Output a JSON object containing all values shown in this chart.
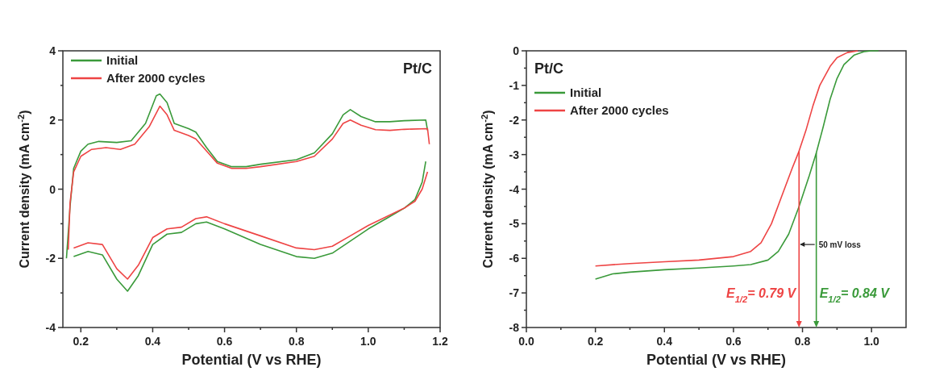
{
  "chart_data": [
    {
      "type": "line",
      "xlabel": "Potential (V vs RHE)",
      "ylabel": "Current density (mA cm$^{-2}$)",
      "legend": "top left",
      "annotations": [
        "Pt/C"
      ],
      "xlim": [
        0.15,
        1.2
      ],
      "xticks": [
        0.2,
        {
          "value": 0.3,
          "label": null
        },
        0.4,
        {
          "value": 0.5,
          "label": null
        },
        0.6,
        {
          "value": 0.7,
          "label": null
        },
        0.8,
        {
          "value": 0.9,
          "label": null
        },
        {
          "value": 1,
          "label": "1.0"
        },
        {
          "value": 1.1,
          "label": null
        },
        1.2
      ],
      "ylim": [
        -4,
        4
      ],
      "yticks": [
        -4,
        {
          "value": -3,
          "label": null
        },
        -2,
        {
          "value": -1,
          "label": null
        },
        0,
        {
          "value": 1,
          "label": null
        },
        2,
        {
          "value": 3,
          "label": null
        },
        4
      ],
      "series": [
        {
          "name": "Initial",
          "color": "#3a9a3a",
          "x": [
            0.16,
            0.17,
            0.18,
            0.2,
            0.22,
            0.25,
            0.3,
            0.34,
            0.38,
            0.41,
            0.42,
            0.44,
            0.46,
            0.5,
            0.52,
            0.55,
            0.58,
            0.62,
            0.66,
            0.7,
            0.8,
            0.85,
            0.9,
            0.93,
            0.95,
            0.98,
            1.02,
            1.06,
            1.1,
            1.16,
            1.165
          ],
          "values": [
            -2.0,
            -0.5,
            0.6,
            1.1,
            1.3,
            1.38,
            1.35,
            1.4,
            1.9,
            2.7,
            2.75,
            2.5,
            1.9,
            1.75,
            1.65,
            1.2,
            0.8,
            0.65,
            0.65,
            0.72,
            0.85,
            1.05,
            1.6,
            2.15,
            2.3,
            2.1,
            1.95,
            1.95,
            1.98,
            2.0,
            1.7
          ]
        },
        {
          "color": "#3a9a3a",
          "x": [
            0.18,
            0.22,
            0.26,
            0.3,
            0.33,
            0.36,
            0.4,
            0.44,
            0.48,
            0.52,
            0.55,
            0.6,
            0.7,
            0.8,
            0.85,
            0.9,
            0.95,
            1.0,
            1.05,
            1.1,
            1.13,
            1.15,
            1.16
          ],
          "values": [
            -1.95,
            -1.8,
            -1.9,
            -2.6,
            -2.95,
            -2.5,
            -1.6,
            -1.3,
            -1.25,
            -1.0,
            -0.95,
            -1.15,
            -1.6,
            -1.95,
            -2.0,
            -1.85,
            -1.5,
            -1.15,
            -0.85,
            -0.55,
            -0.3,
            0.2,
            0.8
          ]
        },
        {
          "name": "After 2000 cycles",
          "color": "#ee4444",
          "x": [
            0.165,
            0.17,
            0.18,
            0.2,
            0.23,
            0.27,
            0.31,
            0.35,
            0.39,
            0.42,
            0.44,
            0.46,
            0.5,
            0.52,
            0.55,
            0.58,
            0.62,
            0.66,
            0.7,
            0.8,
            0.85,
            0.9,
            0.93,
            0.95,
            0.98,
            1.02,
            1.06,
            1.1,
            1.165,
            1.17
          ],
          "values": [
            -1.75,
            -0.4,
            0.5,
            0.95,
            1.15,
            1.2,
            1.15,
            1.3,
            1.8,
            2.4,
            2.15,
            1.7,
            1.55,
            1.45,
            1.1,
            0.75,
            0.6,
            0.6,
            0.65,
            0.8,
            0.95,
            1.45,
            1.9,
            2.0,
            1.85,
            1.72,
            1.7,
            1.73,
            1.75,
            1.3
          ]
        },
        {
          "color": "#ee4444",
          "x": [
            0.18,
            0.22,
            0.26,
            0.3,
            0.33,
            0.36,
            0.4,
            0.44,
            0.48,
            0.52,
            0.55,
            0.6,
            0.7,
            0.8,
            0.85,
            0.9,
            0.95,
            1.0,
            1.05,
            1.1,
            1.13,
            1.15,
            1.165
          ],
          "values": [
            -1.7,
            -1.55,
            -1.6,
            -2.3,
            -2.6,
            -2.2,
            -1.4,
            -1.15,
            -1.1,
            -0.85,
            -0.8,
            -1.0,
            -1.35,
            -1.7,
            -1.75,
            -1.65,
            -1.35,
            -1.05,
            -0.8,
            -0.55,
            -0.35,
            0.0,
            0.5
          ]
        }
      ]
    },
    {
      "type": "line",
      "xlabel": "Potential (V vs RHE)",
      "ylabel": "Current density (mA cm$^{-2}$)",
      "legend": "top left",
      "annotations": [
        "Pt/C",
        "50 mV loss"
      ],
      "xlim": [
        0,
        1.1
      ],
      "xticks": [
        {
          "value": 0,
          "label": "0.0"
        },
        {
          "value": 0.1,
          "label": null
        },
        0.2,
        {
          "value": 0.3,
          "label": null
        },
        0.4,
        {
          "value": 0.5,
          "label": null
        },
        0.6,
        {
          "value": 0.7,
          "label": null
        },
        0.8,
        {
          "value": 0.9,
          "label": null
        },
        {
          "value": 1,
          "label": "1.0"
        }
      ],
      "ylim": [
        -8,
        0
      ],
      "yticks": [
        -8,
        {
          "value": -7.5,
          "label": null
        },
        -7,
        {
          "value": -6.5,
          "label": null
        },
        -6,
        {
          "value": -5.5,
          "label": null
        },
        -5,
        {
          "value": -4.5,
          "label": null
        },
        -4,
        {
          "value": -3.5,
          "label": null
        },
        -3,
        {
          "value": -2.5,
          "label": null
        },
        -2,
        {
          "value": -1.5,
          "label": null
        },
        -1,
        {
          "value": -0.5,
          "label": null
        },
        0
      ],
      "ref_lines": [
        {
          "axis": "x",
          "value": 0.79,
          "label": "E$_{1/2}$= 0.79 V",
          "color": "#ee4444"
        },
        {
          "axis": "x",
          "value": 0.84,
          "label": "E$_{1/2}$= 0.84 V",
          "color": "#3a9a3a"
        }
      ],
      "series": [
        {
          "name": "Initial",
          "color": "#3a9a3a",
          "x": [
            0.2,
            0.25,
            0.3,
            0.4,
            0.5,
            0.6,
            0.65,
            0.7,
            0.73,
            0.76,
            0.79,
            0.82,
            0.84,
            0.86,
            0.88,
            0.9,
            0.92,
            0.95,
            0.98,
            1.0,
            1.02
          ],
          "values": [
            -6.6,
            -6.45,
            -6.4,
            -6.33,
            -6.28,
            -6.22,
            -6.18,
            -6.05,
            -5.8,
            -5.3,
            -4.5,
            -3.6,
            -2.95,
            -2.2,
            -1.4,
            -0.8,
            -0.4,
            -0.12,
            -0.02,
            0,
            0
          ]
        },
        {
          "name": "After 2000 cycles",
          "color": "#ee4444",
          "x": [
            0.2,
            0.3,
            0.4,
            0.5,
            0.6,
            0.65,
            0.68,
            0.71,
            0.74,
            0.77,
            0.79,
            0.81,
            0.83,
            0.85,
            0.88,
            0.9,
            0.93,
            0.96
          ],
          "values": [
            -6.22,
            -6.15,
            -6.1,
            -6.05,
            -5.95,
            -5.8,
            -5.55,
            -5.0,
            -4.2,
            -3.4,
            -2.9,
            -2.3,
            -1.6,
            -1.0,
            -0.45,
            -0.2,
            -0.05,
            0
          ]
        }
      ]
    }
  ]
}
